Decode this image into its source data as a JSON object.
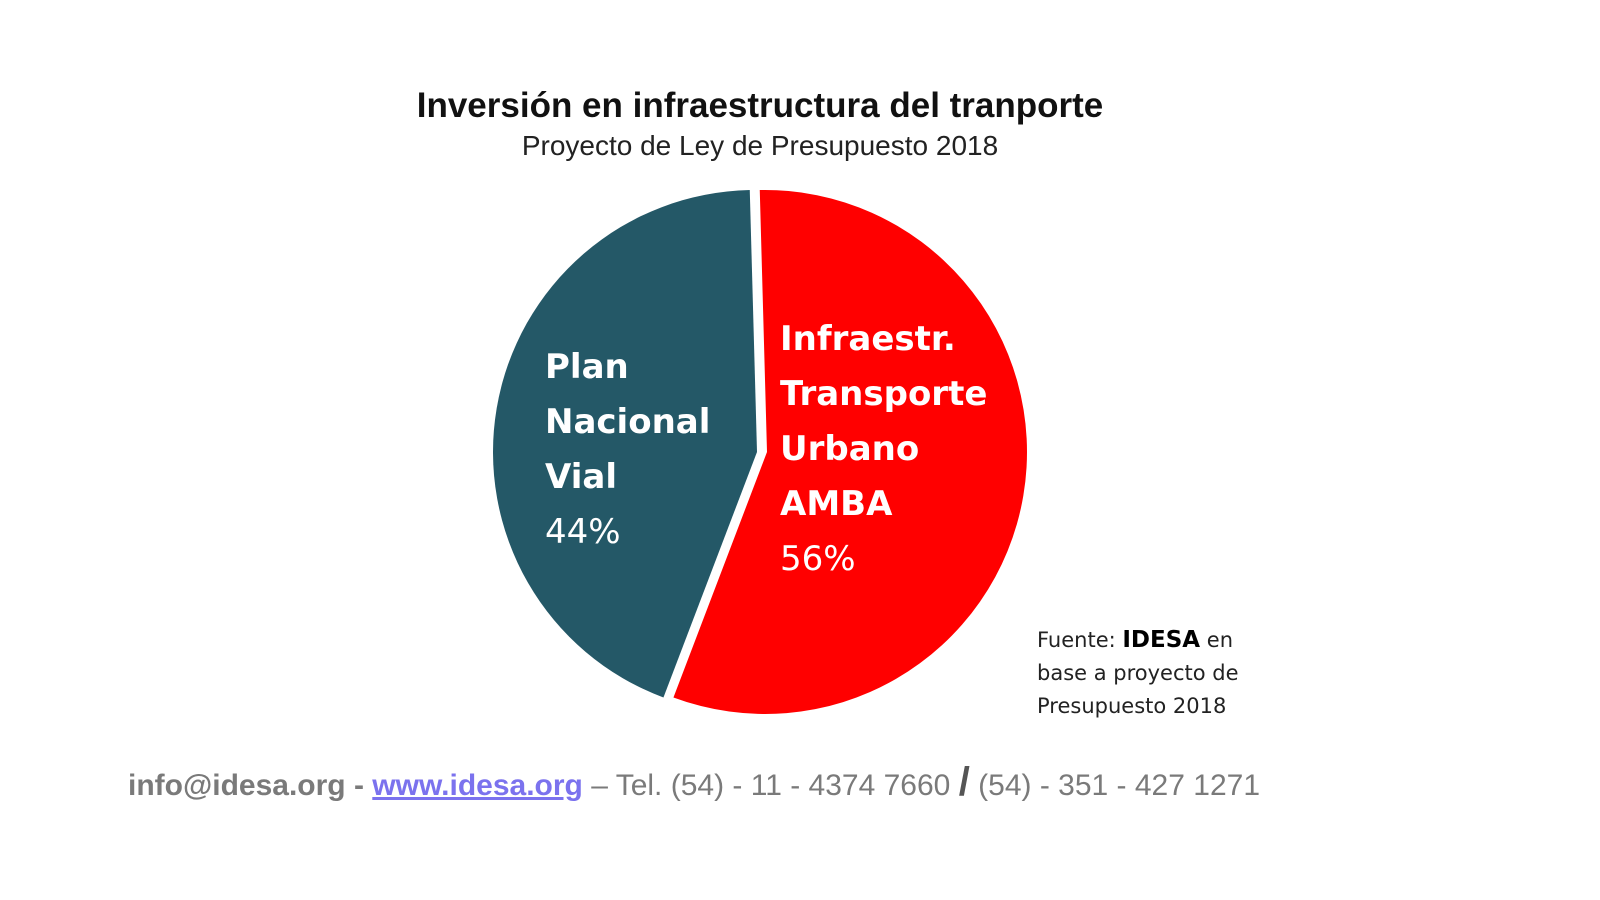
{
  "chart_data": {
    "type": "pie",
    "title": "Inversión en infraestructura del tranporte",
    "subtitle": "Proyecto de Ley de Presupuesto 2018",
    "slices": [
      {
        "label_lines": [
          "Plan",
          "Nacional",
          "Vial"
        ],
        "value": 44,
        "value_label": "44%",
        "color": "#245867"
      },
      {
        "label_lines": [
          "Infraestr.",
          "Transporte",
          "Urbano",
          "AMBA"
        ],
        "value": 56,
        "value_label": "56%",
        "color": "#ff0000"
      }
    ],
    "legend": "none"
  },
  "source": {
    "prefix": "Fuente: ",
    "org": "IDESA",
    "suffix_line1": " en",
    "line2": "base a proyecto de",
    "line3": "Presupuesto 2018"
  },
  "footer": {
    "email": "info@idesa.org",
    "separator": " - ",
    "website": "www.idesa.org",
    "tel_text": " – Tel. (54) - 11 - 4374 7660 ",
    "slash": "/",
    "tel2_text": " (54) - 351 - 427 1271"
  }
}
